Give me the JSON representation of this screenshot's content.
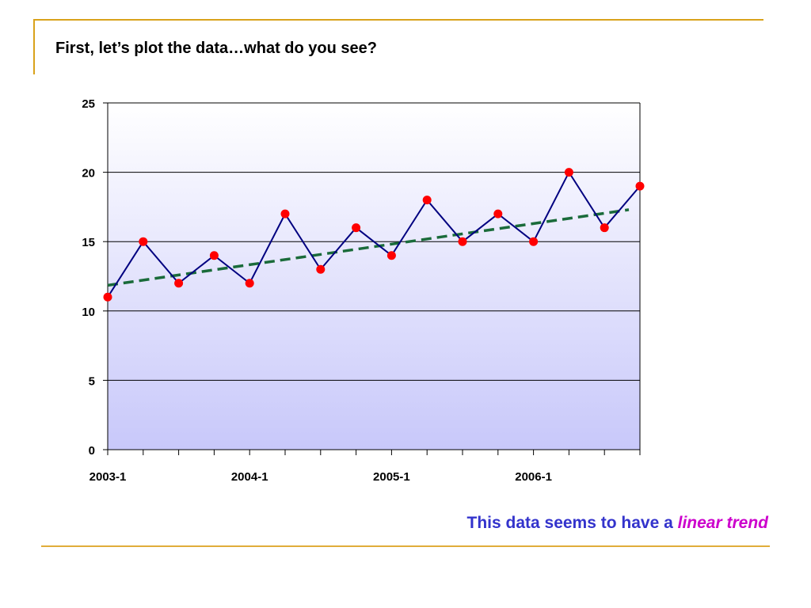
{
  "slide": {
    "title": "First, let’s plot the data…what do you see?",
    "caption_main": "This data seems to have a",
    "caption_emphasis": "linear trend"
  },
  "colors": {
    "frame": "#d9a21b",
    "series_line": "#000080",
    "markers": "#ff0000",
    "trend": "#1a6b3a",
    "plot_bg_top": "#ffffff",
    "plot_bg_bottom": "#c8c8fa",
    "caption_main": "#3333cc",
    "caption_emphasis": "#cc00cc"
  },
  "chart_data": {
    "type": "line",
    "x": [
      "2003-1",
      "2003-2",
      "2003-3",
      "2003-4",
      "2004-1",
      "2004-2",
      "2004-3",
      "2004-4",
      "2005-1",
      "2005-2",
      "2005-3",
      "2005-4",
      "2006-1",
      "2006-2",
      "2006-3",
      "2006-4"
    ],
    "x_tick_labels": [
      "2003-1",
      "2004-1",
      "2005-1",
      "2006-1"
    ],
    "series": [
      {
        "values": [
          11,
          15,
          12,
          14,
          12,
          17,
          13,
          16,
          14,
          18,
          15,
          17,
          15,
          20,
          16,
          19
        ]
      }
    ],
    "trendline": {
      "type": "linear",
      "start": 11.85,
      "end": 17.3,
      "style": "dashed"
    },
    "y_ticks": [
      0,
      5,
      10,
      15,
      20,
      25
    ],
    "ylim": [
      0,
      25
    ],
    "grid": "horizontal",
    "legend": "none",
    "title": "",
    "xlabel": "",
    "ylabel": ""
  }
}
